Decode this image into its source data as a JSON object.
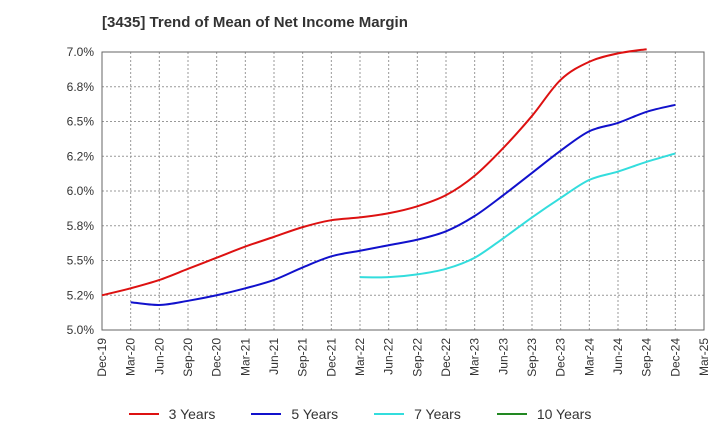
{
  "chart_data": {
    "type": "line",
    "title": "[3435]  Trend of Mean of Net Income Margin",
    "xlabel": "",
    "ylabel": "",
    "categories": [
      "Dec-19",
      "Mar-20",
      "Jun-20",
      "Sep-20",
      "Dec-20",
      "Mar-21",
      "Jun-21",
      "Sep-21",
      "Dec-21",
      "Mar-22",
      "Jun-22",
      "Sep-22",
      "Dec-22",
      "Mar-23",
      "Jun-23",
      "Sep-23",
      "Dec-23",
      "Mar-24",
      "Jun-24",
      "Sep-24",
      "Dec-24",
      "Mar-25"
    ],
    "y_tick_labels": [
      "5.0%",
      "5.2%",
      "5.5%",
      "5.8%",
      "6.0%",
      "6.2%",
      "6.5%",
      "6.8%",
      "7.0%"
    ],
    "ylim": [
      5.0,
      7.0
    ],
    "grid": true,
    "legend_position": "bottom",
    "series": [
      {
        "name": "3 Years",
        "color": "#dd1111",
        "values": [
          5.25,
          5.3,
          5.36,
          5.44,
          5.52,
          5.6,
          5.67,
          5.74,
          5.79,
          5.81,
          5.84,
          5.89,
          5.97,
          6.11,
          6.31,
          6.54,
          6.8,
          6.93,
          6.99,
          7.02,
          null,
          null
        ]
      },
      {
        "name": "5 Years",
        "color": "#1111cc",
        "values": [
          null,
          5.2,
          5.18,
          5.21,
          5.25,
          5.3,
          5.36,
          5.45,
          5.53,
          5.57,
          5.61,
          5.65,
          5.71,
          5.82,
          5.97,
          6.13,
          6.29,
          6.43,
          6.49,
          6.57,
          6.62,
          null
        ]
      },
      {
        "name": "7 Years",
        "color": "#33dddd",
        "values": [
          null,
          null,
          null,
          null,
          null,
          null,
          null,
          null,
          null,
          5.38,
          5.38,
          5.4,
          5.44,
          5.52,
          5.66,
          5.81,
          5.95,
          6.08,
          6.14,
          6.21,
          6.27,
          null
        ]
      },
      {
        "name": "10 Years",
        "color": "#228822",
        "values": [
          null,
          null,
          null,
          null,
          null,
          null,
          null,
          null,
          null,
          null,
          null,
          null,
          null,
          null,
          null,
          null,
          null,
          null,
          null,
          null,
          null,
          null
        ]
      }
    ]
  }
}
